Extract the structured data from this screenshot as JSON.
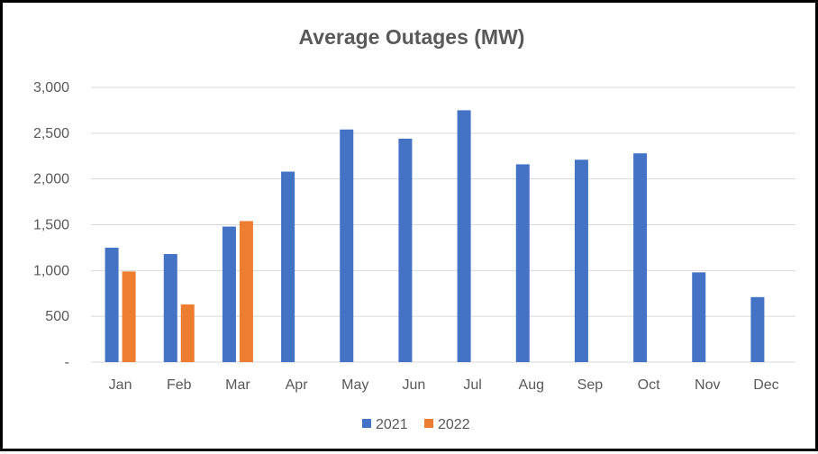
{
  "chart_data": {
    "type": "bar",
    "title": "Average Outages (MW)",
    "xlabel": "",
    "ylabel": "",
    "categories": [
      "Jan",
      "Feb",
      "Mar",
      "Apr",
      "May",
      "Jun",
      "Jul",
      "Aug",
      "Sep",
      "Oct",
      "Nov",
      "Dec"
    ],
    "series": [
      {
        "name": "2021",
        "color": "#4472C4",
        "values": [
          1250,
          1180,
          1480,
          2080,
          2540,
          2440,
          2750,
          2160,
          2210,
          2280,
          980,
          710
        ]
      },
      {
        "name": "2022",
        "color": "#ED7D31",
        "values": [
          990,
          630,
          1540,
          null,
          null,
          null,
          null,
          null,
          null,
          null,
          null,
          null
        ]
      }
    ],
    "ylim": [
      0,
      3000
    ],
    "y_ticks": [
      0,
      500,
      1000,
      1500,
      2000,
      2500,
      3000
    ],
    "y_tick_labels": [
      "-",
      "500",
      "1,000",
      "1,500",
      "2,000",
      "2,500",
      "3,000"
    ],
    "grid": true,
    "gridline_color": "#D9D9D9",
    "legend_position": "bottom"
  }
}
